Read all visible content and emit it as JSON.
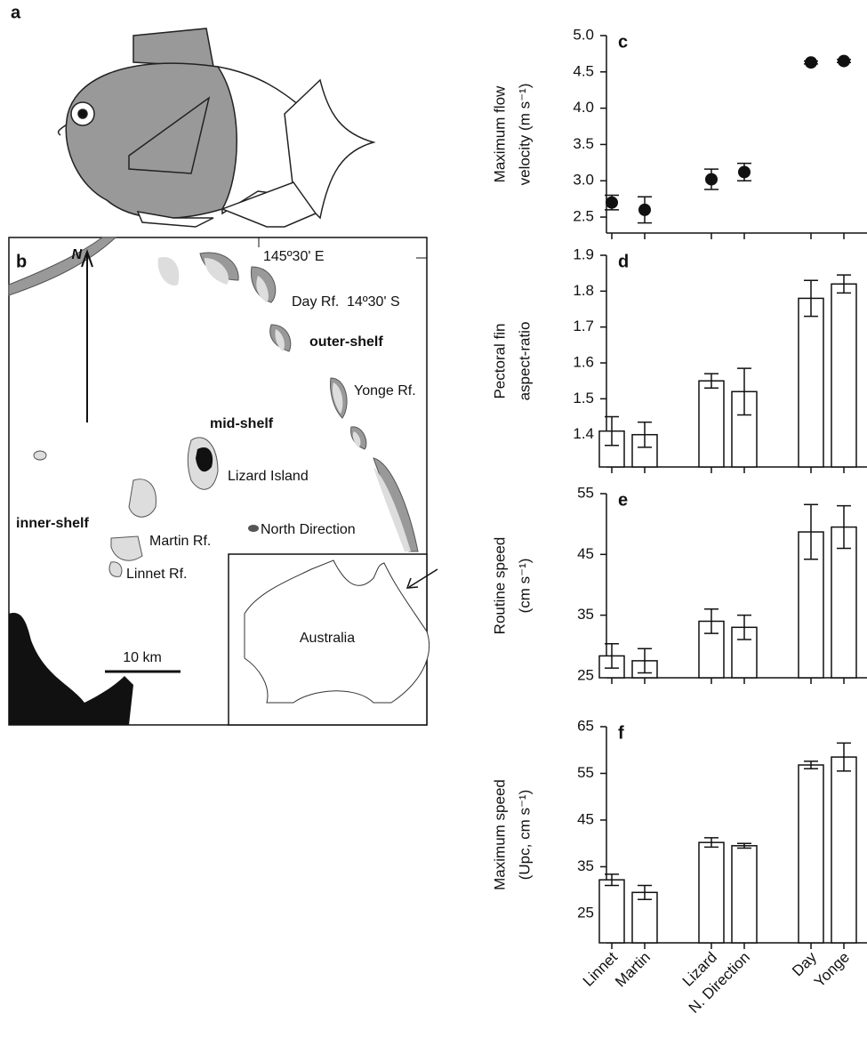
{
  "figure": {
    "panels": {
      "a": "a",
      "b": "b"
    },
    "map_labels": {
      "longitude": "145º30' E",
      "day": "Day Rf.",
      "latitude": "14º30' S",
      "outer": "outer-shelf",
      "yonge": "Yonge Rf.",
      "north": "N",
      "mid": "mid-shelf",
      "lizard": "Lizard Island",
      "inner": "inner-shelf",
      "martin": "Martin Rf.",
      "north_direction": "North Direction",
      "linnet": "Linnet Rf.",
      "scale": "10 km",
      "australia": "Australia"
    }
  },
  "chart_data": [
    {
      "type": "scatter",
      "label": "c",
      "ylabel": [
        "Maximum flow",
        "velocity (m s⁻¹)"
      ],
      "categories": [
        null,
        null,
        null,
        null,
        null,
        null
      ],
      "values": [
        2.7,
        2.6,
        3.02,
        3.12,
        4.63,
        4.65
      ],
      "errors": [
        0.1,
        0.18,
        0.14,
        0.12,
        0.02,
        0.02
      ],
      "color": "#111111",
      "ylim": [
        2.28,
        5.0
      ],
      "yticks": [
        {
          "value": 2.5,
          "label": "2.5"
        },
        {
          "value": 3,
          "label": "3.0"
        },
        {
          "value": 3.5,
          "label": "3.5"
        },
        {
          "value": 4,
          "label": "4.0"
        },
        {
          "value": 4.5,
          "label": "4.5"
        },
        {
          "value": 5,
          "label": "5.0"
        }
      ]
    },
    {
      "type": "bar",
      "label": "d",
      "ylabel": [
        "Pectoral fin",
        "aspect-ratio"
      ],
      "categories": [
        null,
        null,
        null,
        null,
        null,
        null
      ],
      "values": [
        1.41,
        1.4,
        1.55,
        1.52,
        1.78,
        1.82
      ],
      "errors": [
        0.04,
        0.035,
        0.02,
        0.065,
        0.05,
        0.025
      ],
      "color": "#ffffff",
      "ylim": [
        1.31,
        1.9
      ],
      "yticks": [
        1.4,
        1.5,
        1.6,
        1.7,
        1.8,
        1.9
      ]
    },
    {
      "type": "bar",
      "label": "e",
      "ylabel": [
        "Routine speed",
        "(cm s⁻¹)"
      ],
      "categories": [
        null,
        null,
        null,
        null,
        null,
        null
      ],
      "values": [
        28.3,
        27.5,
        34,
        33,
        48.7,
        49.5
      ],
      "errors": [
        2,
        2,
        2,
        2,
        4.5,
        3.5
      ],
      "color": "#ffffff",
      "ylim": [
        24.7,
        55
      ],
      "yticks": [
        25,
        35,
        45,
        55
      ]
    },
    {
      "type": "bar",
      "label": "f",
      "ylabel": [
        "Maximum speed",
        "(Upc, cm s⁻¹)"
      ],
      "categories": [
        "Linnet",
        "Martin",
        "Lizard",
        "N. Direction",
        "Day",
        "Yonge"
      ],
      "values": [
        32.2,
        29.5,
        40.2,
        39.5,
        56.8,
        58.5
      ],
      "errors": [
        1.2,
        1.5,
        1,
        0.5,
        0.8,
        3
      ],
      "color": "#ffffff",
      "ylim": [
        18.7,
        65
      ],
      "yticks": [
        25,
        35,
        45,
        55,
        65
      ]
    }
  ]
}
